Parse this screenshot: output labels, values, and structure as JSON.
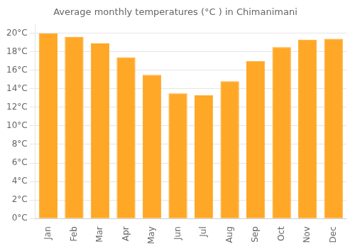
{
  "chart_data": {
    "type": "bar",
    "title": "Average monthly temperatures (°C ) in Chimanimani",
    "categories": [
      "Jan",
      "Feb",
      "Mar",
      "Apr",
      "May",
      "Jun",
      "Jul",
      "Aug",
      "Sep",
      "Oct",
      "Nov",
      "Dec"
    ],
    "values": [
      20.0,
      19.6,
      18.9,
      17.4,
      15.5,
      13.5,
      13.3,
      14.8,
      17.0,
      18.5,
      19.3,
      19.4
    ],
    "color": "#FFA726",
    "ylim": [
      0,
      21
    ],
    "yticks": [
      {
        "value": 0,
        "label": "0°C"
      },
      {
        "value": 2,
        "label": "2°C"
      },
      {
        "value": 4,
        "label": "4°C"
      },
      {
        "value": 6,
        "label": "6°C"
      },
      {
        "value": 8,
        "label": "8°C"
      },
      {
        "value": 10,
        "label": "10°C"
      },
      {
        "value": 12,
        "label": "12°C"
      },
      {
        "value": 14,
        "label": "14°C"
      },
      {
        "value": 16,
        "label": "16°C"
      },
      {
        "value": 18,
        "label": "18°C"
      },
      {
        "value": 20,
        "label": "20°C"
      }
    ],
    "grid": true
  }
}
